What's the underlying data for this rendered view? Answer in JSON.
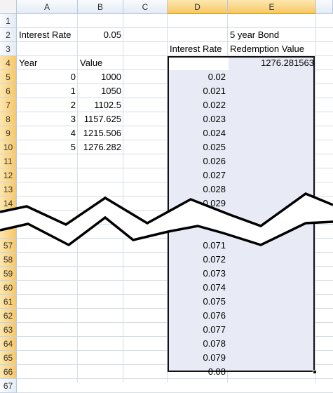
{
  "columns": [
    {
      "letter": "A",
      "width": 87
    },
    {
      "letter": "B",
      "width": 65
    },
    {
      "letter": "C",
      "width": 63
    },
    {
      "letter": "D",
      "width": 86
    },
    {
      "letter": "E",
      "width": 126
    }
  ],
  "selected_columns": [
    "D",
    "E"
  ],
  "rows": [
    {
      "num": "1",
      "cells": {}
    },
    {
      "num": "2",
      "cells": {
        "A": {
          "v": "Interest Rate",
          "t": "txt"
        },
        "B": {
          "v": "0.05",
          "t": "num"
        },
        "E": {
          "v": "5 year Bond",
          "t": "txt"
        }
      }
    },
    {
      "num": "3",
      "cells": {
        "D": {
          "v": "Interest Rate",
          "t": "txt"
        },
        "E": {
          "v": "Redemption Value",
          "t": "txt"
        }
      }
    },
    {
      "num": "4",
      "sel": true,
      "cells": {
        "A": {
          "v": "Year",
          "t": "txt"
        },
        "B": {
          "v": "Value",
          "t": "txt"
        },
        "E": {
          "v": "1276.281563",
          "t": "num"
        }
      }
    },
    {
      "num": "5",
      "sel": true,
      "cells": {
        "A": {
          "v": "0",
          "t": "num"
        },
        "B": {
          "v": "1000",
          "t": "num"
        },
        "D": {
          "v": "0.02",
          "t": "num"
        }
      }
    },
    {
      "num": "6",
      "sel": true,
      "cells": {
        "A": {
          "v": "1",
          "t": "num"
        },
        "B": {
          "v": "1050",
          "t": "num"
        },
        "D": {
          "v": "0.021",
          "t": "num"
        }
      }
    },
    {
      "num": "7",
      "sel": true,
      "cells": {
        "A": {
          "v": "2",
          "t": "num"
        },
        "B": {
          "v": "1102.5",
          "t": "num"
        },
        "D": {
          "v": "0.022",
          "t": "num"
        }
      }
    },
    {
      "num": "8",
      "sel": true,
      "cells": {
        "A": {
          "v": "3",
          "t": "num"
        },
        "B": {
          "v": "1157.625",
          "t": "num"
        },
        "D": {
          "v": "0.023",
          "t": "num"
        }
      }
    },
    {
      "num": "9",
      "sel": true,
      "cells": {
        "A": {
          "v": "4",
          "t": "num"
        },
        "B": {
          "v": "1215.506",
          "t": "num"
        },
        "D": {
          "v": "0.024",
          "t": "num"
        }
      }
    },
    {
      "num": "10",
      "sel": true,
      "cells": {
        "A": {
          "v": "5",
          "t": "num"
        },
        "B": {
          "v": "1276.282",
          "t": "num"
        },
        "D": {
          "v": "0.025",
          "t": "num"
        }
      }
    },
    {
      "num": "11",
      "sel": true,
      "cells": {
        "D": {
          "v": "0.026",
          "t": "num"
        }
      }
    },
    {
      "num": "12",
      "sel": true,
      "cells": {
        "D": {
          "v": "0.027",
          "t": "num"
        }
      }
    },
    {
      "num": "13",
      "sel": true,
      "cells": {
        "D": {
          "v": "0.028",
          "t": "num"
        }
      }
    },
    {
      "num": "14",
      "sel": true,
      "cells": {
        "D": {
          "v": "0.029",
          "t": "num"
        }
      }
    },
    {
      "num": "15",
      "sel": true,
      "cells": {}
    },
    {
      "num": "",
      "sel": true,
      "cells": {}
    },
    {
      "num": "57",
      "sel": true,
      "cells": {
        "D": {
          "v": "0.071",
          "t": "num"
        }
      }
    },
    {
      "num": "58",
      "sel": true,
      "cells": {
        "D": {
          "v": "0.072",
          "t": "num"
        }
      }
    },
    {
      "num": "59",
      "sel": true,
      "cells": {
        "D": {
          "v": "0.073",
          "t": "num"
        }
      }
    },
    {
      "num": "60",
      "sel": true,
      "cells": {
        "D": {
          "v": "0.074",
          "t": "num"
        }
      }
    },
    {
      "num": "61",
      "sel": true,
      "cells": {
        "D": {
          "v": "0.075",
          "t": "num"
        }
      }
    },
    {
      "num": "62",
      "sel": true,
      "cells": {
        "D": {
          "v": "0.076",
          "t": "num"
        }
      }
    },
    {
      "num": "63",
      "sel": true,
      "cells": {
        "D": {
          "v": "0.077",
          "t": "num"
        }
      }
    },
    {
      "num": "64",
      "sel": true,
      "cells": {
        "D": {
          "v": "0.078",
          "t": "num"
        }
      }
    },
    {
      "num": "65",
      "sel": true,
      "cells": {
        "D": {
          "v": "0.079",
          "t": "num"
        }
      }
    },
    {
      "num": "66",
      "sel": true,
      "cells": {
        "D": {
          "v": "0.08",
          "t": "num"
        }
      }
    },
    {
      "num": "67",
      "cells": {}
    }
  ],
  "colors": {
    "selection_fill": "#e8ebf5",
    "header_selected": "#f6c766",
    "grid": "#d6dde6"
  },
  "break_icon": "zigzag-break-icon"
}
